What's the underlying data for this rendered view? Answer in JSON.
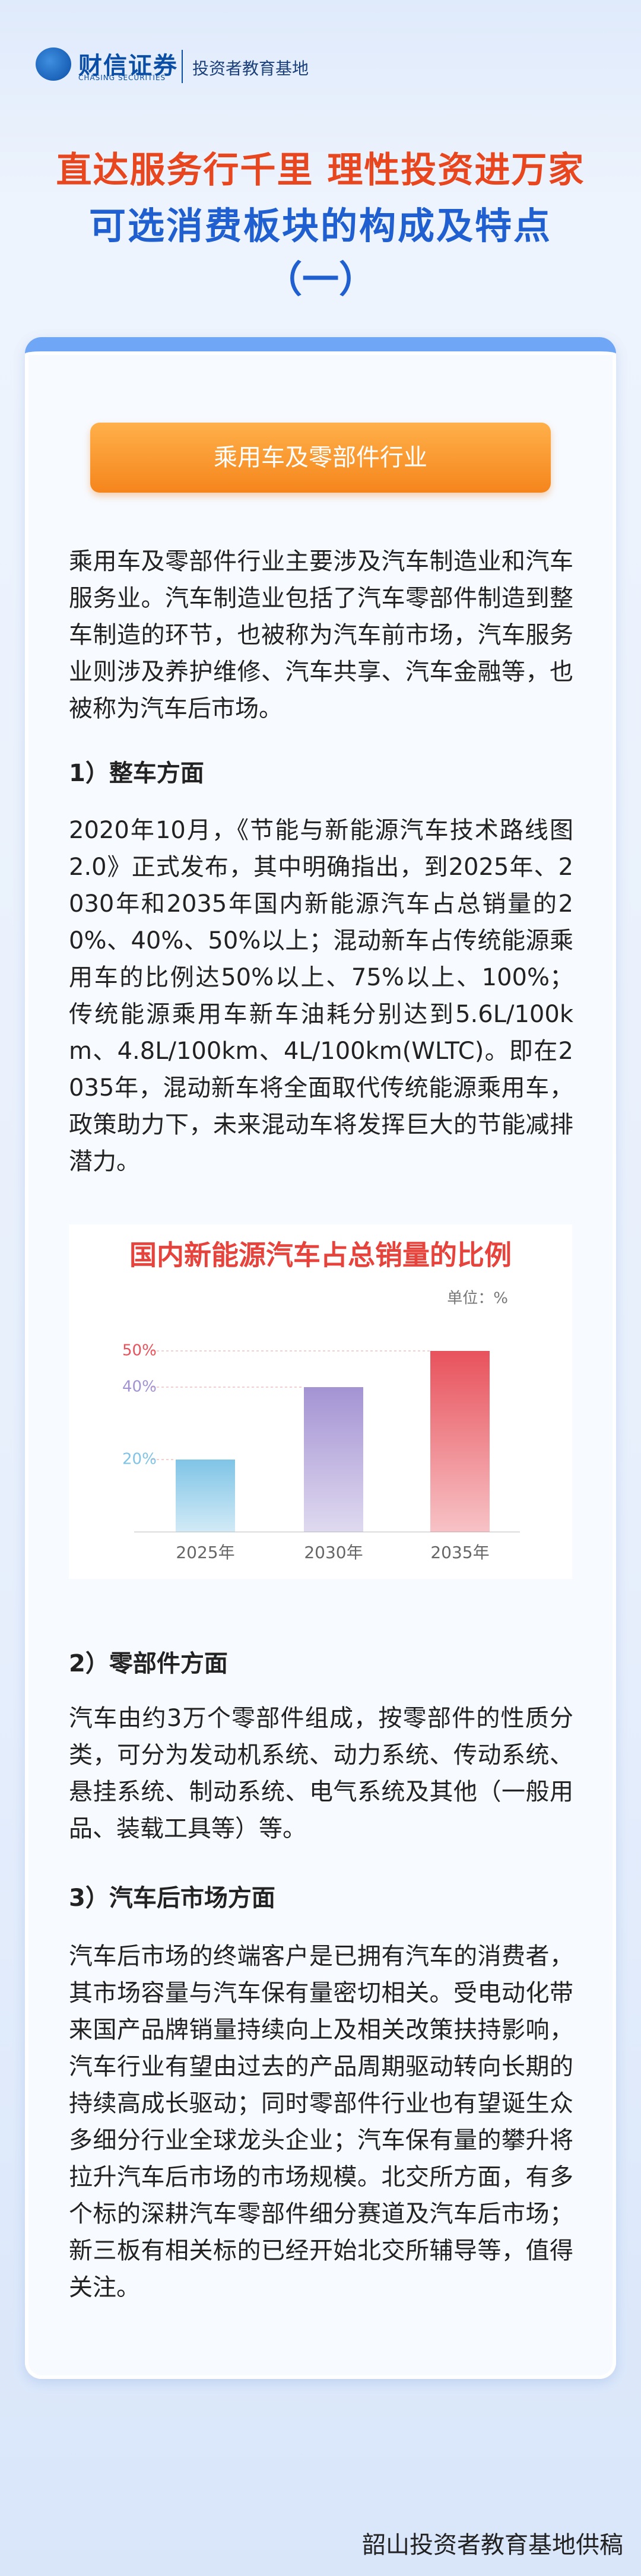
{
  "header": {
    "brand": "财信证券",
    "brand_en": "CHASING SECURITIES",
    "base": "投资者教育基地"
  },
  "title": {
    "slogan": "直达服务行千里 理性投资进万家",
    "main": "可选消费板块的构成及特点",
    "part": "（一）"
  },
  "section_button": "乘用车及零部件行业",
  "intro": "乘用车及零部件行业主要涉及汽车制造业和汽车服务业。汽车制造业包括了汽车零部件制造到整车制造的环节，也被称为汽车前市场，汽车服务业则涉及养护维修、汽车共享、汽车金融等，也被称为汽车后市场。",
  "sections": [
    {
      "heading": "1）整车方面",
      "text": "2020年10月，《节能与新能源汽车技术路线图2.0》正式发布，其中明确指出，到2025年、2030年和2035年国内新能源汽车占总销量的20%、40%、50%以上；混动新车占传统能源乘用车的比例达50%以上、75%以上、100%；传统能源乘用车新车油耗分别达到5.6L/100km、4.8L/100km、4L/100km(WLTC)。即在2035年，混动新车将全面取代传统能源乘用车，政策助力下，未来混动车将发挥巨大的节能减排潜力。"
    },
    {
      "heading": "2）零部件方面",
      "text": "汽车由约3万个零部件组成，按零部件的性质分类，可分为发动机系统、动力系统、传动系统、悬挂系统、制动系统、电气系统及其他（一般用品、装载工具等）等。"
    },
    {
      "heading": "3）汽车后市场方面",
      "text": "汽车后市场的终端客户是已拥有汽车的消费者，其市场容量与汽车保有量密切相关。受电动化带来国产品牌销量持续向上及相关改策扶持影响，汽车行业有望由过去的产品周期驱动转向长期的持续高成长驱动；同时零部件行业也有望诞生众多细分行业全球龙头企业；汽车保有量的攀升将拉升汽车后市场的市场规模。北交所方面，有多个标的深耕汽车零部件细分赛道及汽车后市场；新三板有相关标的已经开始北交所辅导等，值得关注。"
    }
  ],
  "chart_data": {
    "type": "bar",
    "title": "国内新能源汽车占总销量的比例",
    "unit": "单位：%",
    "categories": [
      "2025年",
      "2030年",
      "2035年"
    ],
    "values": [
      20,
      40,
      50
    ],
    "value_labels": [
      "20%",
      "40%",
      "50%"
    ],
    "colors": [
      "#7fc4e6",
      "#a493d3",
      "#e8525c"
    ]
  },
  "footer": "韶山投资者教育基地供稿"
}
